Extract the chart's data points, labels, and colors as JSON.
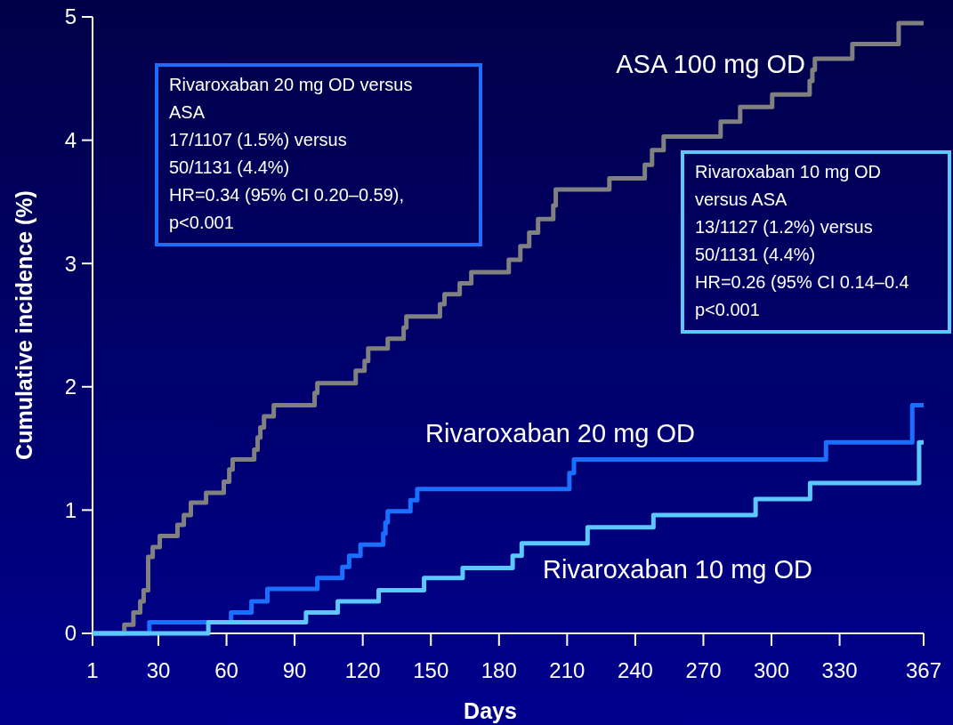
{
  "chart_data": {
    "type": "step",
    "xlabel": "Days",
    "ylabel": "Cumulative incidence (%)",
    "xlim": [
      1,
      367
    ],
    "xticks": [
      1,
      30,
      60,
      90,
      120,
      150,
      180,
      210,
      240,
      270,
      300,
      330,
      367
    ],
    "ylim": [
      0,
      5
    ],
    "yticks": [
      0,
      1,
      2,
      3,
      4,
      5
    ],
    "grid": false,
    "line_style": "solid",
    "marker": "none",
    "series": [
      {
        "name": "ASA 100 mg OD",
        "color": "#808080",
        "x": [
          1,
          15,
          19,
          22,
          23.5,
          25.5,
          27.5,
          30.6,
          38.4,
          41.2,
          44.3,
          51,
          58.8,
          61.2,
          62.7,
          72.2,
          73.7,
          74.9,
          76.5,
          80.8,
          98.8,
          100,
          116.9,
          120.8,
          122.4,
          131,
          138,
          139.2,
          154,
          156,
          162.7,
          167.8,
          184.3,
          189.4,
          193.3,
          197.2,
          203.9,
          205,
          228.6,
          244.2,
          247.4,
          252.5,
          277.6,
          286.2,
          300.3,
          316.8,
          318,
          319.1,
          335.6,
          356,
          367
        ],
        "values": [
          0,
          0.07,
          0.17,
          0.26,
          0.35,
          0.62,
          0.7,
          0.79,
          0.88,
          0.96,
          1.06,
          1.14,
          1.23,
          1.33,
          1.41,
          1.49,
          1.59,
          1.67,
          1.76,
          1.85,
          1.95,
          2.03,
          2.13,
          2.21,
          2.31,
          2.39,
          2.48,
          2.57,
          2.67,
          2.75,
          2.84,
          2.93,
          3.03,
          3.14,
          3.25,
          3.36,
          3.47,
          3.6,
          3.69,
          3.8,
          3.92,
          4.03,
          4.15,
          4.27,
          4.37,
          4.48,
          4.57,
          4.66,
          4.78,
          4.95,
          4.95
        ]
      },
      {
        "name": "Rivaroxaban 20 mg OD",
        "color": "#1a6fff",
        "x": [
          1,
          26,
          62,
          71,
          78,
          100,
          111,
          114,
          119,
          129,
          130,
          131,
          141,
          144,
          211,
          213,
          324,
          362,
          367
        ],
        "values": [
          0,
          0.09,
          0.17,
          0.26,
          0.36,
          0.45,
          0.54,
          0.63,
          0.72,
          0.81,
          0.9,
          0.99,
          1.08,
          1.17,
          1.3,
          1.41,
          1.55,
          1.85,
          1.85
        ]
      },
      {
        "name": "Rivaroxaban 10 mg OD",
        "color": "#5cc8ff",
        "x": [
          1,
          52,
          95,
          109,
          127,
          147,
          164,
          186,
          190,
          219,
          248,
          293,
          317,
          365,
          367
        ],
        "values": [
          0,
          0.09,
          0.17,
          0.26,
          0.35,
          0.45,
          0.53,
          0.63,
          0.73,
          0.86,
          0.96,
          1.09,
          1.22,
          1.55,
          1.55
        ]
      }
    ],
    "annotations": [
      "Rivaroxaban 20 mg OD versus\nASA\n17/1107 (1.5%) versus\n50/1131 (4.4%)\nHR=0.34 (95% CI 0.20–0.59),\np<0.001",
      "Rivaroxaban 10 mg OD\nversus ASA\n13/1127 (1.2%) versus\n50/1131 (4.4%)\nHR=0.26 (95% CI 0.14–0.4\np<0.001"
    ]
  }
}
